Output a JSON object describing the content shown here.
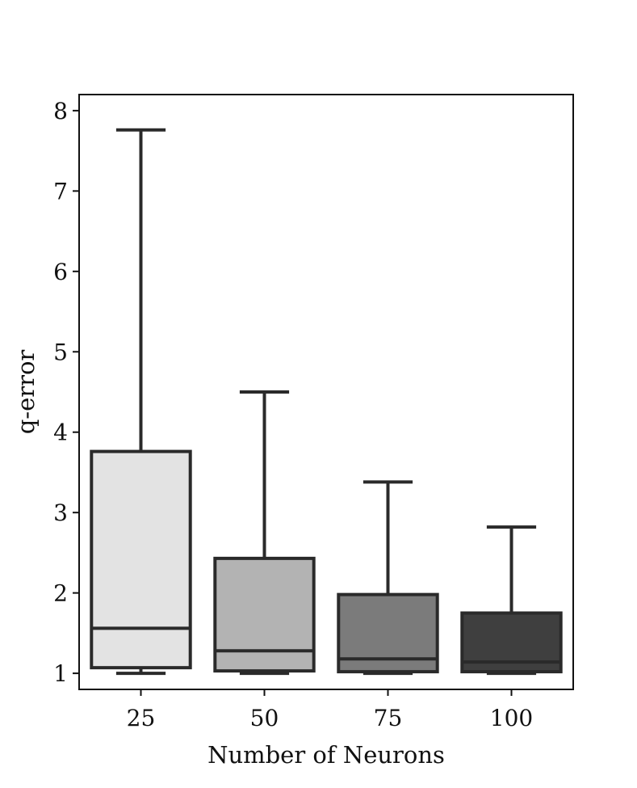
{
  "chart_data": {
    "type": "boxplot",
    "title": "",
    "xlabel": "Number of Neurons",
    "ylabel": "q-error",
    "categories": [
      "25",
      "50",
      "75",
      "100"
    ],
    "ylim": [
      0.8,
      8.2
    ],
    "yticks": [
      1,
      2,
      3,
      4,
      5,
      6,
      7,
      8
    ],
    "grid": false,
    "legend": "none",
    "boxes": [
      {
        "category": "25",
        "whisker_low": 1.0,
        "q1": 1.07,
        "median": 1.56,
        "q3": 3.76,
        "whisker_high": 7.76,
        "color": "#e3e3e3"
      },
      {
        "category": "50",
        "whisker_low": 1.0,
        "q1": 1.03,
        "median": 1.28,
        "q3": 2.43,
        "whisker_high": 4.5,
        "color": "#b3b3b3"
      },
      {
        "category": "75",
        "whisker_low": 1.0,
        "q1": 1.02,
        "median": 1.18,
        "q3": 1.98,
        "whisker_high": 3.38,
        "color": "#7b7b7b"
      },
      {
        "category": "100",
        "whisker_low": 1.0,
        "q1": 1.02,
        "median": 1.14,
        "q3": 1.75,
        "whisker_high": 2.82,
        "color": "#3f3f3f"
      }
    ],
    "line_color": "#2a2a2a"
  }
}
